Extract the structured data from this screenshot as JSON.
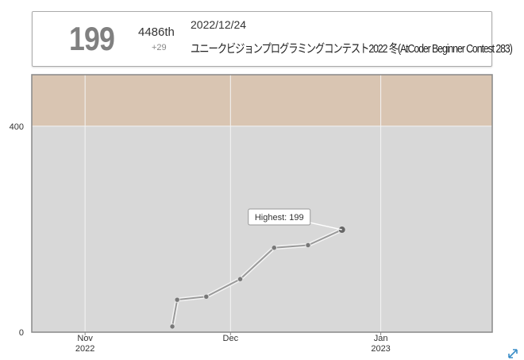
{
  "card": {
    "rating": "199",
    "rank": "4486th",
    "diff": "+29",
    "date": "2022/12/24",
    "contest": "ユニークビジョンプログラミングコンテスト2022 冬(AtCoder Beginner Contest 283)"
  },
  "chart_data": {
    "type": "line",
    "annotation": "Highest: 199",
    "x": [
      323,
      324,
      330,
      337,
      344,
      351,
      358
    ],
    "values": [
      11,
      63,
      69,
      103,
      164,
      169,
      199
    ],
    "color": "#999999",
    "xlim": [
      294,
      389
    ],
    "xticks": [
      {
        "value": 305,
        "label": "Nov\n2022"
      },
      {
        "value": 335,
        "label": "Dec"
      },
      {
        "value": 366,
        "label": "Jan\n2023"
      }
    ],
    "ylim": [
      0,
      500
    ],
    "yticks": [
      0,
      400
    ],
    "grid": true,
    "bands": [
      {
        "from": 0,
        "to": 400,
        "color": "#d8d8d8"
      },
      {
        "from": 400,
        "to": 500,
        "color": "#d9c5b2"
      }
    ]
  }
}
